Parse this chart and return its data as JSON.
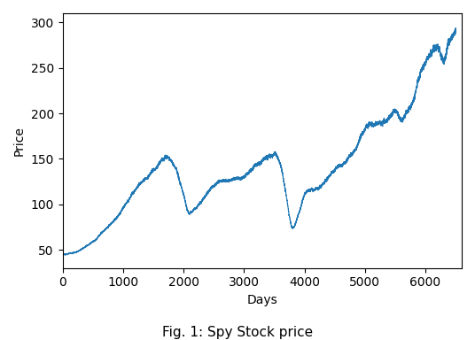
{
  "xlabel": "Days",
  "ylabel": "Price",
  "line_color": "#1f77b4",
  "line_width": 0.8,
  "figsize": [
    5.36,
    3.84
  ],
  "dpi": 100,
  "xlim": [
    0,
    6600
  ],
  "ylim": [
    30,
    310
  ],
  "xticks": [
    0,
    1000,
    2000,
    3000,
    4000,
    5000,
    6000
  ],
  "yticks": [
    50,
    100,
    150,
    200,
    250,
    300
  ],
  "caption": "Fig. 1: Spy Stock price",
  "caption_fontsize": 11,
  "keypoints_x": [
    0,
    200,
    500,
    800,
    1000,
    1200,
    1500,
    1750,
    1850,
    2000,
    2100,
    2200,
    2500,
    2800,
    3000,
    3200,
    3500,
    3600,
    3700,
    3750,
    3800,
    3900,
    4000,
    4200,
    4500,
    4800,
    5000,
    5200,
    5400,
    5500,
    5600,
    5700,
    5800,
    5900,
    6000,
    6100,
    6200,
    6300,
    6400,
    6500
  ],
  "keypoints_y": [
    45,
    47,
    60,
    80,
    95,
    115,
    135,
    152,
    145,
    115,
    95,
    100,
    120,
    125,
    130,
    145,
    158,
    145,
    110,
    88,
    75,
    90,
    110,
    120,
    140,
    160,
    185,
    192,
    200,
    207,
    195,
    205,
    215,
    240,
    255,
    270,
    278,
    265,
    285,
    290
  ]
}
